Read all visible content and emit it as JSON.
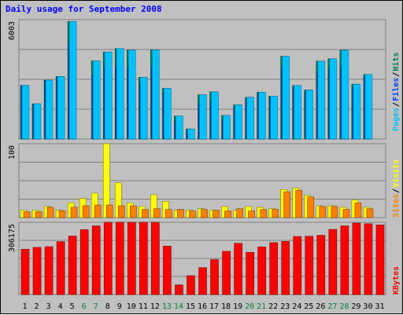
{
  "title": "Daily usage for September 2008",
  "colors": {
    "hits": "#00805c",
    "files": "#0040ff",
    "pages": "#00c0ff",
    "visits": "#ffff00",
    "sites": "#ff8000",
    "kbytes": "#ff0000",
    "weekend_label": "#008040",
    "weekday_label": "#000000"
  },
  "chart_data": [
    {
      "type": "bar",
      "title": "Daily usage for September 2008",
      "ylabel_parts": [
        "Pages",
        "Files",
        "Hits"
      ],
      "ymax": 6003,
      "categories": [
        "1",
        "2",
        "3",
        "4",
        "5",
        "6",
        "7",
        "8",
        "9",
        "10",
        "11",
        "12",
        "13",
        "14",
        "15",
        "16",
        "17",
        "18",
        "19",
        "20",
        "21",
        "22",
        "23",
        "24",
        "25",
        "26",
        "27",
        "28",
        "29",
        "30",
        "31"
      ],
      "weekend_days": [
        6,
        7,
        13,
        14,
        20,
        21,
        27,
        28
      ],
      "series": [
        {
          "name": "Hits",
          "values": [
            2692,
            1772,
            2958,
            3142,
            5909,
            0,
            3924,
            4376,
            4549,
            4466,
            3100,
            4479,
            2546,
            1157,
            507,
            2225,
            2371,
            1184,
            1718,
            2097,
            2351,
            2158,
            4162,
            2692,
            2466,
            3915,
            4032,
            4466,
            2758,
            3242,
            0
          ]
        },
        {
          "name": "Files",
          "values": [
            2700,
            1750,
            2950,
            3100,
            4900,
            0,
            3200,
            3600,
            3600,
            3600,
            2800,
            3600,
            2300,
            900,
            400,
            1800,
            1900,
            1000,
            1600,
            2000,
            2300,
            2100,
            3600,
            2600,
            2400,
            3400,
            3500,
            3600,
            2600,
            3100,
            0
          ]
        },
        {
          "name": "Pages",
          "values": [
            2692,
            1772,
            2958,
            3142,
            5909,
            0,
            3924,
            4376,
            4549,
            4466,
            3100,
            4479,
            2546,
            1157,
            507,
            2225,
            2371,
            1184,
            1718,
            2097,
            2351,
            2158,
            4162,
            2692,
            2466,
            3915,
            4032,
            4466,
            2758,
            3242,
            0
          ]
        }
      ]
    },
    {
      "type": "bar",
      "ylabel_parts": [
        "Sites",
        "Visits"
      ],
      "ymax": 100,
      "categories": [
        "1",
        "2",
        "3",
        "4",
        "5",
        "6",
        "7",
        "8",
        "9",
        "10",
        "11",
        "12",
        "13",
        "14",
        "15",
        "16",
        "17",
        "18",
        "19",
        "20",
        "21",
        "22",
        "23",
        "24",
        "25",
        "26",
        "27",
        "28",
        "29",
        "30",
        "31"
      ],
      "series": [
        {
          "name": "Visits",
          "values": [
            10,
            10,
            15,
            10,
            20,
            26,
            33,
            100,
            47,
            20,
            15,
            31,
            22,
            10,
            10,
            12,
            10,
            15,
            10,
            15,
            14,
            12,
            38,
            40,
            30,
            16,
            16,
            14,
            24,
            14,
            0
          ]
        },
        {
          "name": "Sites",
          "values": [
            8,
            8,
            14,
            9,
            14,
            16,
            17,
            17,
            16,
            16,
            11,
            12,
            11,
            11,
            9,
            11,
            10,
            9,
            12,
            9,
            11,
            11,
            35,
            37,
            28,
            15,
            15,
            11,
            20,
            12,
            0
          ]
        }
      ]
    },
    {
      "type": "bar",
      "ylabel_parts": [
        "KBytes"
      ],
      "ymax": 306175,
      "categories": [
        "1",
        "2",
        "3",
        "4",
        "5",
        "6",
        "7",
        "8",
        "9",
        "10",
        "11",
        "12",
        "13",
        "14",
        "15",
        "16",
        "17",
        "18",
        "19",
        "20",
        "21",
        "22",
        "23",
        "24",
        "25",
        "26",
        "27",
        "28",
        "29",
        "30",
        "31"
      ],
      "series": [
        {
          "name": "KBytes",
          "values": [
            192000,
            200000,
            203000,
            224000,
            248000,
            275000,
            291000,
            318000,
            329000,
            329000,
            347000,
            348000,
            205000,
            41000,
            80000,
            114000,
            148000,
            183000,
            217000,
            179000,
            202000,
            220000,
            225000,
            246000,
            247000,
            251000,
            276000,
            291000,
            303000,
            300000,
            295000
          ]
        }
      ]
    }
  ]
}
